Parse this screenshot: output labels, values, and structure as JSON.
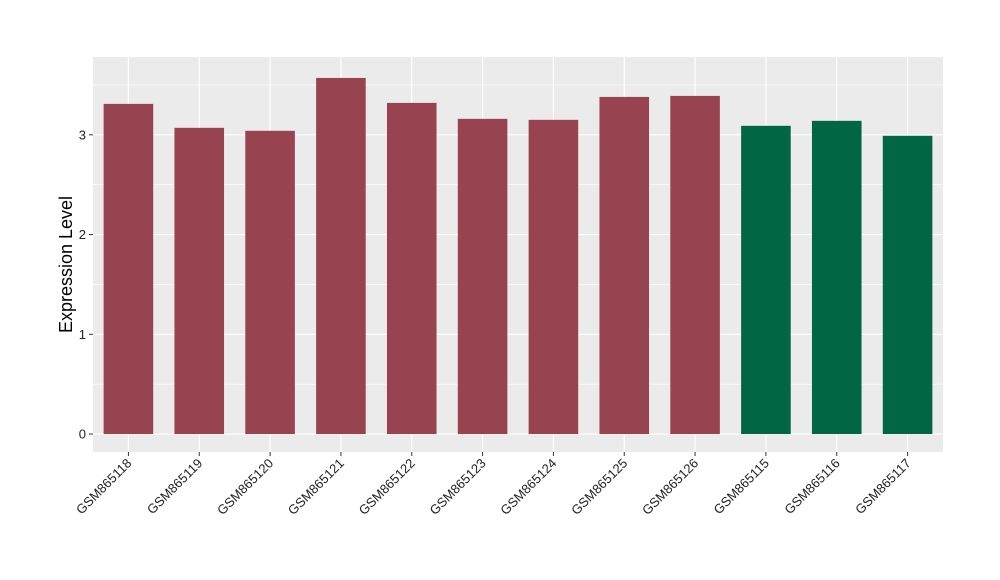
{
  "chart_data": {
    "type": "bar",
    "title": "",
    "xlabel": "",
    "ylabel": "Expression Level",
    "ylim": [
      -0.18,
      3.78
    ],
    "y_ticks": [
      0,
      1,
      2,
      3
    ],
    "y_tick_labels": [
      "0",
      "1",
      "2",
      "3"
    ],
    "grid": true,
    "legend": "none",
    "categories": [
      "GSM865118",
      "GSM865119",
      "GSM865120",
      "GSM865121",
      "GSM865122",
      "GSM865123",
      "GSM865124",
      "GSM865125",
      "GSM865126",
      "GSM865115",
      "GSM865116",
      "GSM865117"
    ],
    "values": [
      3.31,
      3.07,
      3.04,
      3.57,
      3.32,
      3.16,
      3.15,
      3.38,
      3.39,
      3.09,
      3.14,
      2.99
    ],
    "bar_colors": [
      "#984350",
      "#984350",
      "#984350",
      "#984350",
      "#984350",
      "#984350",
      "#984350",
      "#984350",
      "#984350",
      "#006644",
      "#006644",
      "#006644"
    ],
    "panel_background": "#EBEBEB",
    "grid_color": "#FFFFFF"
  }
}
